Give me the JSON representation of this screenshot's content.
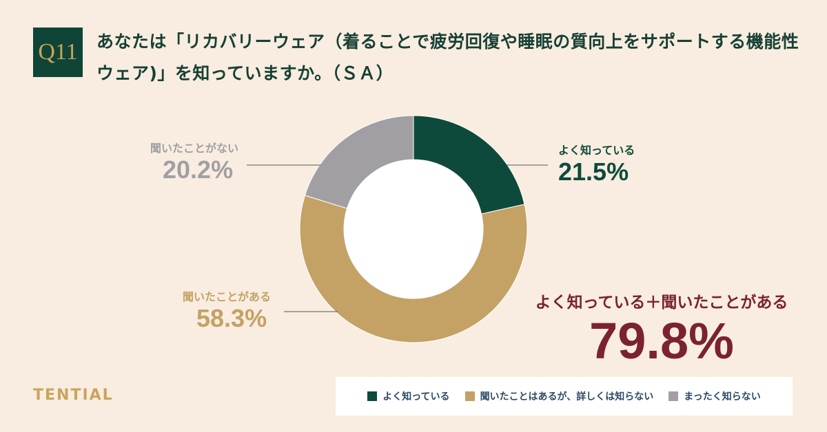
{
  "header": {
    "badge": "Q11",
    "question": "あなたは「リカバリーウェア（着ることで疲労回復や睡眠の質向上をサポートする機能性ウェア)」を知っていますか。（ＳＡ）"
  },
  "brand": "TENTIAL",
  "chart_data": {
    "type": "pie",
    "donut": true,
    "start": "top-clockwise",
    "slices": [
      {
        "label": "よく知っている",
        "value": 21.5,
        "display": "21.5%",
        "color": "#0e4a3b"
      },
      {
        "label": "聞いたことがある",
        "value": 58.3,
        "display": "58.3%",
        "color": "#c4a165"
      },
      {
        "label": "聞いたことがない",
        "value": 20.2,
        "display": "20.2%",
        "color": "#a19fa3"
      }
    ],
    "annotation": {
      "label": "よく知っている＋聞いたことがある",
      "value": "79.8%"
    },
    "legend": [
      {
        "label": "よく知っている",
        "color": "#0e4a3b"
      },
      {
        "label": "聞いたことはあるが、詳しくは知らない",
        "color": "#c4a165"
      },
      {
        "label": "まったく知らない",
        "color": "#a19fa3"
      }
    ],
    "legend_position": "bottom-right"
  }
}
